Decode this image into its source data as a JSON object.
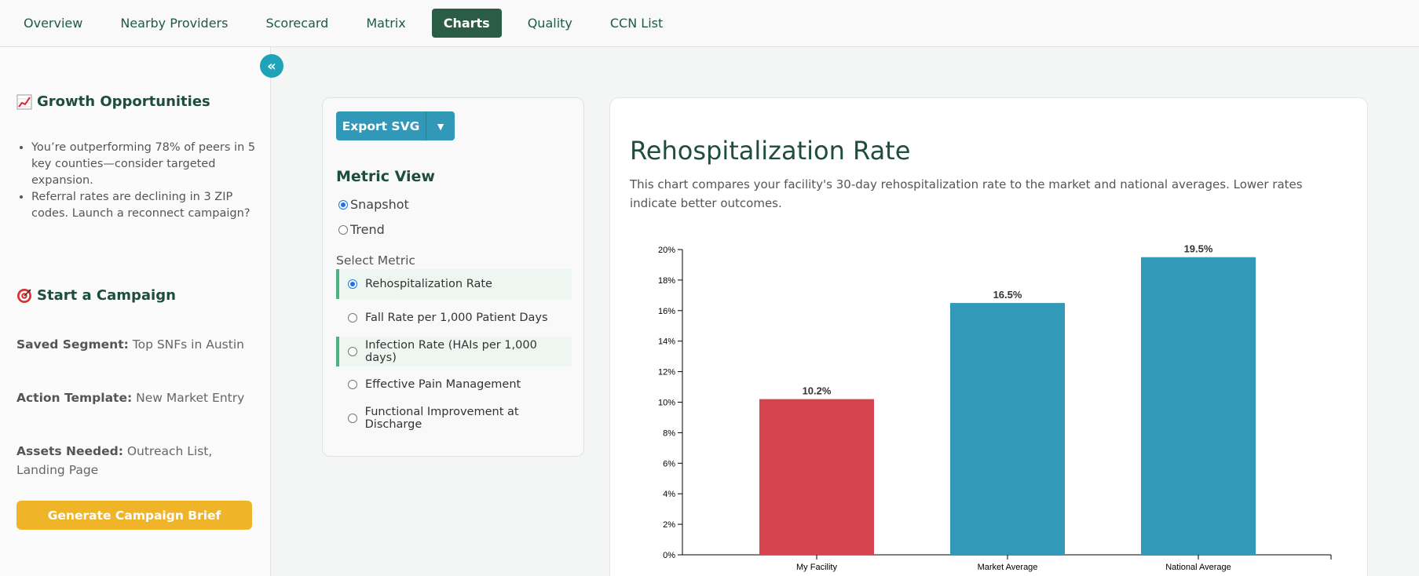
{
  "nav": {
    "tabs": [
      {
        "label": "Overview"
      },
      {
        "label": "Nearby Providers"
      },
      {
        "label": "Scorecard"
      },
      {
        "label": "Matrix"
      },
      {
        "label": "Charts",
        "active": true
      },
      {
        "label": "Quality"
      },
      {
        "label": "CCN List"
      }
    ]
  },
  "sidebar": {
    "collapse_symbol": "«",
    "growth": {
      "icon": "chart-increasing-icon",
      "title": "Growth Opportunities",
      "items": [
        "You’re outperforming 78% of peers in 5 key counties—consider targeted expansion.",
        "Referral rates are declining in 3 ZIP codes. Launch a reconnect campaign?"
      ]
    },
    "campaign": {
      "icon": "target-icon",
      "title": "Start a Campaign",
      "saved_segment_label": "Saved Segment:",
      "saved_segment_value": "Top SNFs in Austin",
      "action_template_label": "Action Template:",
      "action_template_value": "New Market Entry",
      "assets_label": "Assets Needed:",
      "assets_value": "Outreach List, Landing Page",
      "button": "Generate Campaign Brief"
    }
  },
  "controls": {
    "export_label": "Export SVG",
    "export_arrow": "▼",
    "metric_view_title": "Metric View",
    "views": [
      {
        "label": "Snapshot",
        "selected": true
      },
      {
        "label": "Trend",
        "selected": false
      }
    ],
    "select_metric_label": "Select Metric",
    "metrics": [
      {
        "label": "Rehospitalization Rate",
        "selected": true,
        "highlighted": true
      },
      {
        "label": "Fall Rate per 1,000 Patient Days",
        "selected": false,
        "highlighted": false
      },
      {
        "label": "Infection Rate (HAIs per 1,000 days)",
        "selected": false,
        "highlighted": true
      },
      {
        "label": "Effective Pain Management",
        "selected": false,
        "highlighted": false
      },
      {
        "label": "Functional Improvement at Discharge",
        "selected": false,
        "highlighted": false
      }
    ]
  },
  "chart": {
    "title": "Rehospitalization Rate",
    "description": "This chart compares your facility's 30-day rehospitalization rate to the market and national averages. Lower rates indicate better outcomes."
  },
  "chart_data": {
    "type": "bar",
    "title": "Rehospitalization Rate",
    "categories": [
      "My Facility",
      "Market Average",
      "National Average"
    ],
    "values": [
      10.2,
      16.5,
      19.5
    ],
    "value_labels": [
      "10.2%",
      "16.5%",
      "19.5%"
    ],
    "colors": [
      "#d6444f",
      "#3399b9",
      "#3399b9"
    ],
    "yticks": [
      "0%",
      "2%",
      "4%",
      "6%",
      "8%",
      "10%",
      "12%",
      "14%",
      "16%",
      "18%",
      "20%"
    ],
    "ylim": [
      0,
      20
    ],
    "grid": false,
    "xlabel": "",
    "ylabel": ""
  }
}
